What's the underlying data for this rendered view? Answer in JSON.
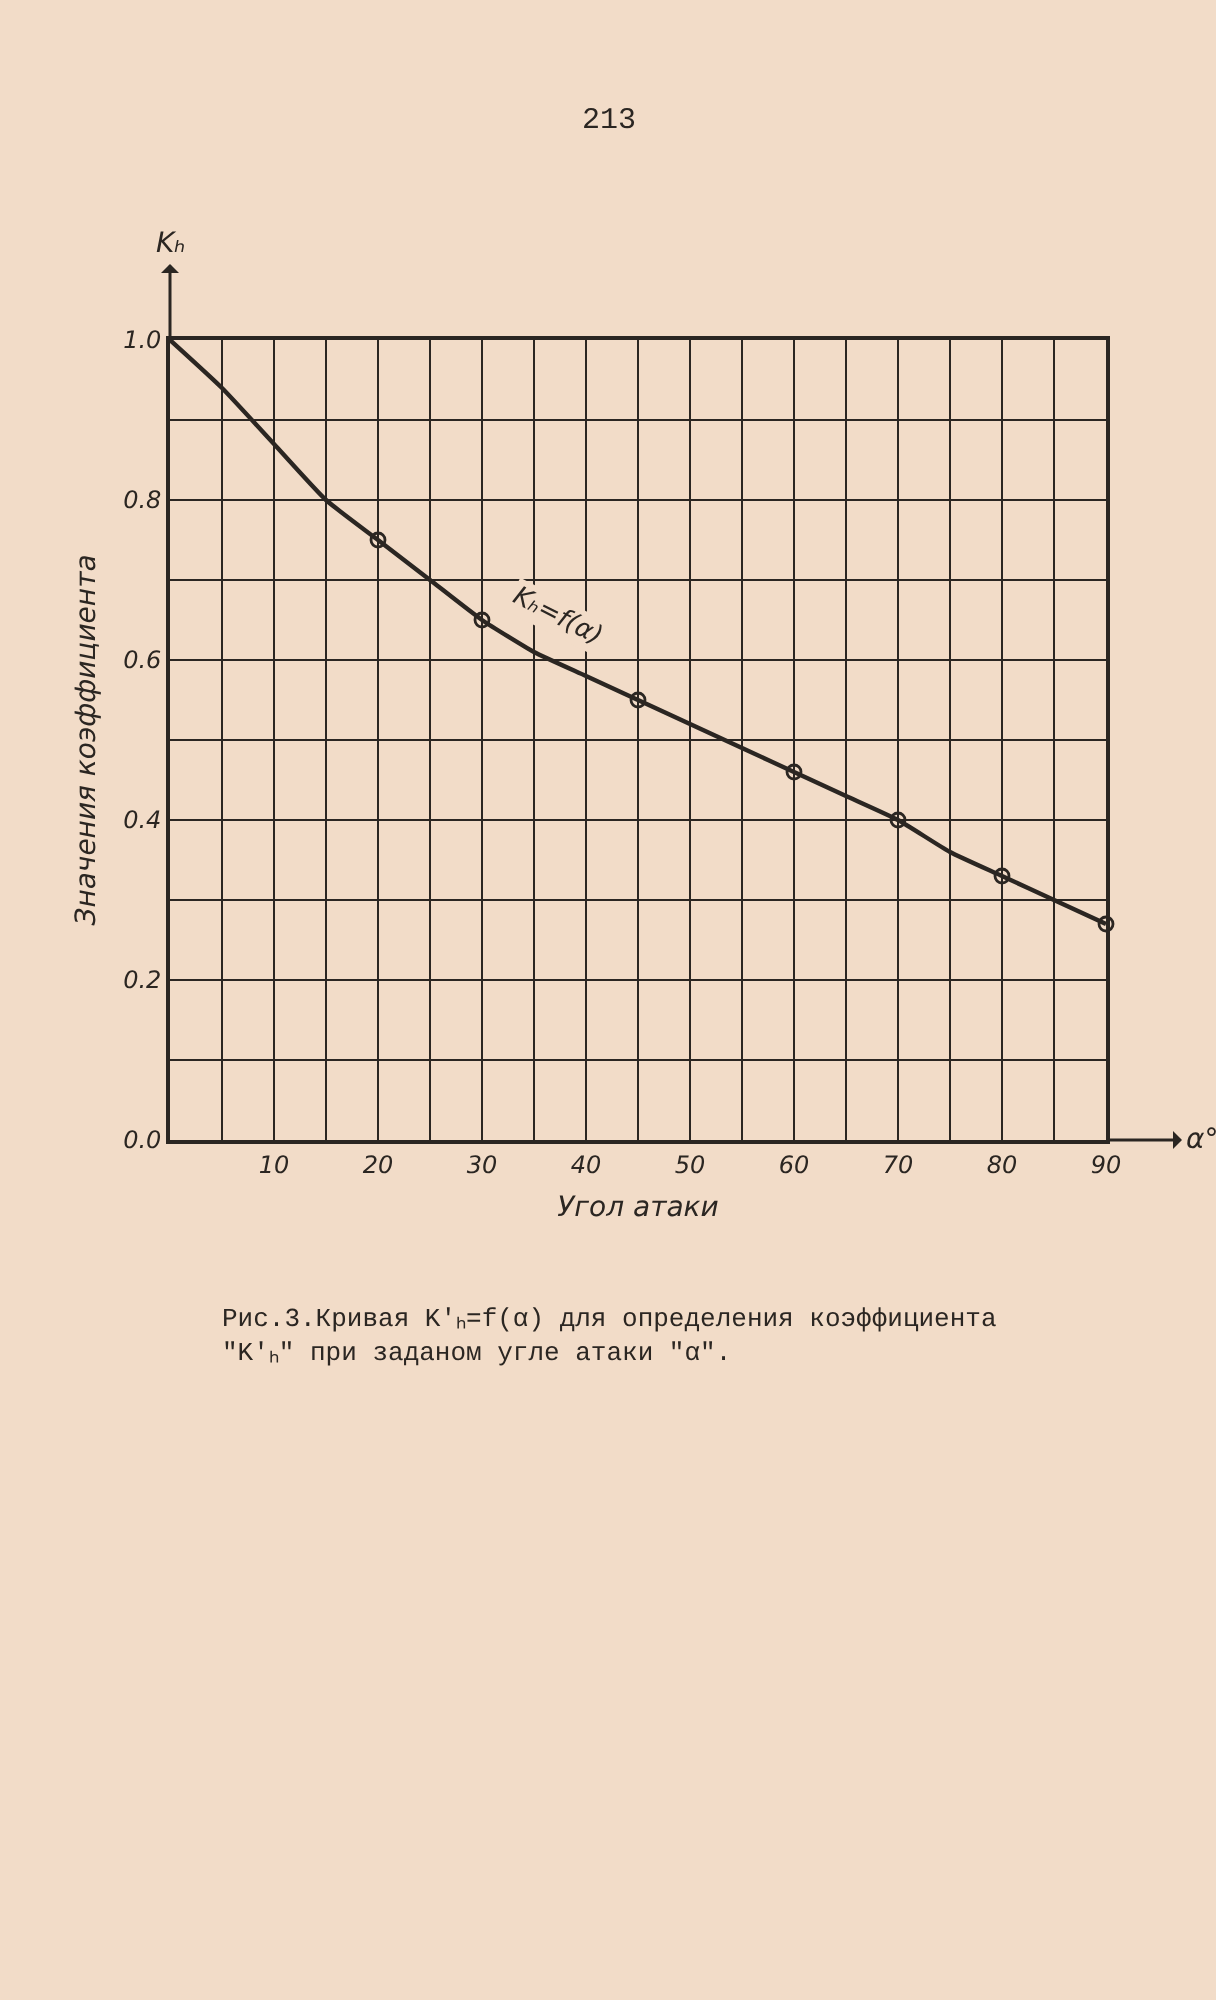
{
  "chart_data": {
    "type": "line",
    "title": "Рис.3.Кривая K'ₕ=f(α) для определения коэффициента \"K'ₕ\" при заданом угле атаки \"α\".",
    "xlabel": "Угол атаки",
    "ylabel": "Значения коэффициента",
    "annotations": [
      "213",
      "α°",
      "Kₕ",
      {
        "text": "Kₕ=f(α)",
        "x": 40,
        "y": 0.58
      }
    ],
    "series": [
      {
        "type": "line",
        "color": "#2b2622",
        "marker": "none",
        "line_style": "solid",
        "x": [
          0,
          5,
          10,
          15,
          20,
          25,
          30,
          35,
          40,
          45,
          50,
          55,
          60,
          65,
          70,
          75,
          80,
          85,
          90
        ],
        "values": [
          1.0,
          0.94,
          0.87,
          0.8,
          0.75,
          0.7,
          0.65,
          0.61,
          0.58,
          0.55,
          0.52,
          0.49,
          0.46,
          0.43,
          0.4,
          0.36,
          0.33,
          0.3,
          0.27
        ]
      },
      {
        "type": "scatter",
        "color": "#2b2622",
        "marker": "circle",
        "x": [
          20,
          30,
          45,
          60,
          70,
          80,
          90
        ],
        "values": [
          0.75,
          0.65,
          0.55,
          0.46,
          0.4,
          0.33,
          0.27
        ]
      }
    ],
    "xlim": [
      0,
      90
    ],
    "xticks": [
      {
        "value": 0,
        "label": null
      },
      {
        "value": 5,
        "label": null
      },
      10,
      {
        "value": 15,
        "label": null
      },
      20,
      {
        "value": 25,
        "label": null
      },
      30,
      {
        "value": 35,
        "label": null
      },
      40,
      {
        "value": 45,
        "label": null
      },
      50,
      {
        "value": 55,
        "label": null
      },
      60,
      {
        "value": 65,
        "label": null
      },
      70,
      {
        "value": 75,
        "label": null
      },
      80,
      {
        "value": 85,
        "label": null
      },
      90
    ],
    "ylim": [
      0,
      1
    ],
    "yticks": [
      {
        "value": 0,
        "label": "0.0"
      },
      {
        "value": 0.1,
        "label": null
      },
      0.2,
      {
        "value": 0.3,
        "label": null
      },
      0.4,
      {
        "value": 0.5,
        "label": null
      },
      0.6,
      {
        "value": 0.7,
        "label": null
      },
      0.8,
      {
        "value": 0.9,
        "label": null
      },
      {
        "value": 1,
        "label": "1.0"
      }
    ],
    "grid": true
  }
}
